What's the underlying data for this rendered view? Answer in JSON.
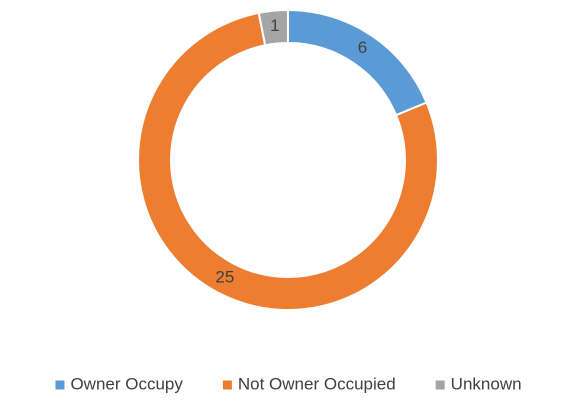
{
  "chart_data": {
    "type": "donut",
    "categories": [
      "Owner Occupy",
      "Not Owner Occupied",
      "Unknown"
    ],
    "values": [
      6,
      25,
      1
    ],
    "colors": [
      "#5b9bd5",
      "#ed7d31",
      "#a5a5a5"
    ],
    "legend": "bottom"
  }
}
